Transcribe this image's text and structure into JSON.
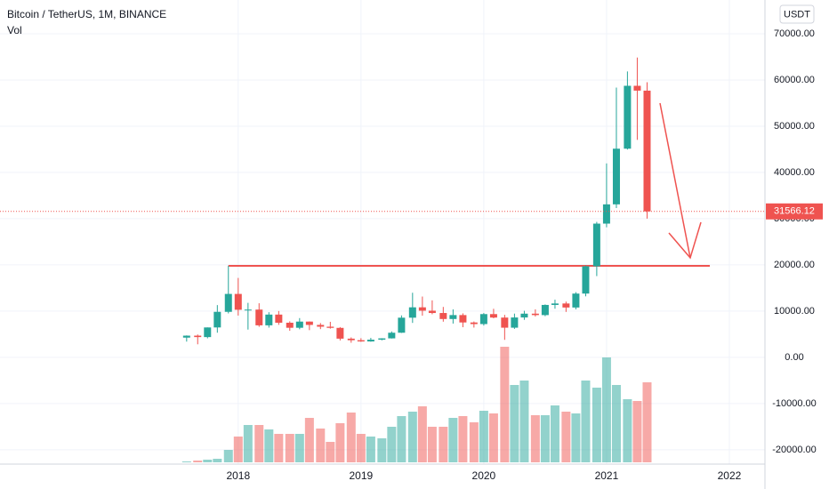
{
  "chart_data": {
    "type": "candlestick",
    "title": "Bitcoin / TetherUS, 1M, BINANCE",
    "volume_label": "Vol",
    "currency_button": "USDT",
    "x": [
      2017.58,
      2017.67,
      2017.75,
      2017.83,
      2017.92,
      2018,
      2018.08,
      2018.17,
      2018.25,
      2018.33,
      2018.42,
      2018.5,
      2018.58,
      2018.67,
      2018.75,
      2018.83,
      2018.92,
      2019,
      2019.08,
      2019.17,
      2019.25,
      2019.33,
      2019.42,
      2019.5,
      2019.58,
      2019.67,
      2019.75,
      2019.83,
      2019.92,
      2020,
      2020.08,
      2020.17,
      2020.25,
      2020.33,
      2020.42,
      2020.5,
      2020.58,
      2020.67,
      2020.75,
      2020.83,
      2020.92,
      2021,
      2021.08,
      2021.17,
      2021.25,
      2021.33
    ],
    "open": [
      4261,
      4690,
      4378,
      6463,
      9838,
      13716,
      10285,
      10326,
      6923,
      9246,
      7485,
      6391,
      7730,
      7011,
      6626,
      6371,
      4041,
      3702,
      3434,
      3814,
      4103,
      5321,
      8574,
      10817,
      10086,
      9590,
      8289,
      9140,
      7541,
      7195,
      9352,
      8599,
      6410,
      8621,
      9448,
      9138,
      11335,
      11649,
      10776,
      13791,
      19695,
      28923,
      33092,
      45135,
      58740,
      57694
    ],
    "high": [
      4745,
      4939,
      6470,
      11300,
      19798,
      17176,
      11786,
      11700,
      9759,
      10020,
      7786,
      8488,
      7760,
      7410,
      7680,
      6540,
      4313,
      4140,
      4210,
      4140,
      5600,
      9074,
      13970,
      13147,
      12325,
      10905,
      10370,
      9513,
      7750,
      9578,
      10500,
      9188,
      9460,
      10067,
      10380,
      11444,
      12468,
      12050,
      14100,
      19863,
      29300,
      41950,
      58352,
      61844,
      64854,
      59500
    ],
    "low": [
      3400,
      2817,
      4110,
      5325,
      9500,
      9035,
      6000,
      6600,
      6430,
      7032,
      5750,
      6070,
      5880,
      6100,
      6200,
      3652,
      3156,
      3349,
      3373,
      3670,
      4067,
      5272,
      7444,
      9010,
      9320,
      7710,
      7300,
      6515,
      6435,
      6871,
      8445,
      3782,
      6150,
      8106,
      8833,
      8893,
      10518,
      9825,
      10375,
      13195,
      17572,
      28130,
      32296,
      44950,
      47044,
      30000
    ],
    "close": [
      4690,
      4378,
      6463,
      9838,
      13716,
      10285,
      10326,
      6923,
      9246,
      7485,
      6391,
      7730,
      7011,
      6626,
      6371,
      4041,
      3702,
      3434,
      3814,
      4103,
      5321,
      8574,
      10817,
      10086,
      9590,
      8289,
      9140,
      7541,
      7195,
      9352,
      8599,
      6410,
      8621,
      9448,
      9138,
      11335,
      11649,
      10776,
      13791,
      19695,
      28923,
      33092,
      45135,
      58740,
      57694,
      31566.12
    ],
    "volume": [
      1000,
      2000,
      3000,
      4000,
      14000,
      29000,
      42000,
      42000,
      37000,
      32000,
      32000,
      32000,
      50000,
      38000,
      23000,
      44000,
      56000,
      32000,
      29000,
      27000,
      40000,
      52000,
      57000,
      63000,
      40000,
      40000,
      50000,
      52000,
      45000,
      58000,
      55000,
      130000,
      87000,
      92000,
      53000,
      53000,
      64000,
      57000,
      55000,
      92000,
      84000,
      118000,
      87000,
      71000,
      69000,
      90000
    ],
    "up_color": "#26a69a",
    "down_color": "#ef5350",
    "xlim": [
      2016.06,
      2022.29
    ],
    "xticks": [
      2018,
      2019,
      2020,
      2021,
      2022
    ],
    "ylim": [
      -23100,
      77300
    ],
    "yticks": [
      {
        "value": 70000,
        "label": "70000.00"
      },
      {
        "value": 60000,
        "label": "60000.00"
      },
      {
        "value": 50000,
        "label": "50000.00"
      },
      {
        "value": 40000,
        "label": "40000.00"
      },
      {
        "value": 30000,
        "label": "30000.00"
      },
      {
        "value": 20000,
        "label": "20000.00"
      },
      {
        "value": 10000,
        "label": "10000.00"
      },
      {
        "value": 0,
        "label": "0.00"
      },
      {
        "value": -10000,
        "label": "-10000.00"
      },
      {
        "value": -20000,
        "label": "-20000.00"
      }
    ],
    "vol_ylim": [
      0,
      522000
    ],
    "resistance": 19800,
    "grid": true
  }
}
